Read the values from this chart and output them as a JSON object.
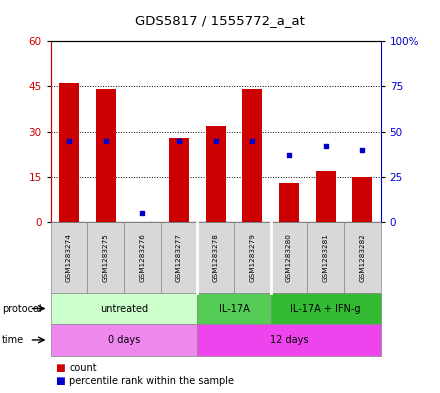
{
  "title": "GDS5817 / 1555772_a_at",
  "samples": [
    "GSM1283274",
    "GSM1283275",
    "GSM1283276",
    "GSM1283277",
    "GSM1283278",
    "GSM1283279",
    "GSM1283280",
    "GSM1283281",
    "GSM1283282"
  ],
  "counts": [
    46,
    44,
    0,
    28,
    32,
    44,
    13,
    17,
    15
  ],
  "percentile_ranks": [
    45,
    45,
    5,
    45,
    45,
    45,
    37,
    42,
    40
  ],
  "left_ylim": [
    0,
    60
  ],
  "left_yticks": [
    0,
    15,
    30,
    45,
    60
  ],
  "right_ylim": [
    0,
    100
  ],
  "right_yticks": [
    0,
    25,
    50,
    75,
    100
  ],
  "right_yticklabels": [
    "0",
    "25",
    "50",
    "75",
    "100%"
  ],
  "bar_color": "#cc0000",
  "dot_color": "#0000cc",
  "left_axis_color": "#cc0000",
  "right_axis_color": "#0000cc",
  "protocol_groups": [
    {
      "label": "untreated",
      "start": 0,
      "end": 3,
      "color": "#ccffcc"
    },
    {
      "label": "IL-17A",
      "start": 4,
      "end": 5,
      "color": "#55cc55"
    },
    {
      "label": "IL-17A + IFN-g",
      "start": 6,
      "end": 8,
      "color": "#33bb33"
    }
  ],
  "time_groups": [
    {
      "label": "0 days",
      "start": 0,
      "end": 3,
      "color": "#ee88ee"
    },
    {
      "label": "12 days",
      "start": 4,
      "end": 8,
      "color": "#ee44ee"
    }
  ],
  "protocol_label": "protocol",
  "time_label": "time",
  "legend_count_label": "count",
  "legend_pct_label": "percentile rank within the sample",
  "background_color": "#ffffff"
}
